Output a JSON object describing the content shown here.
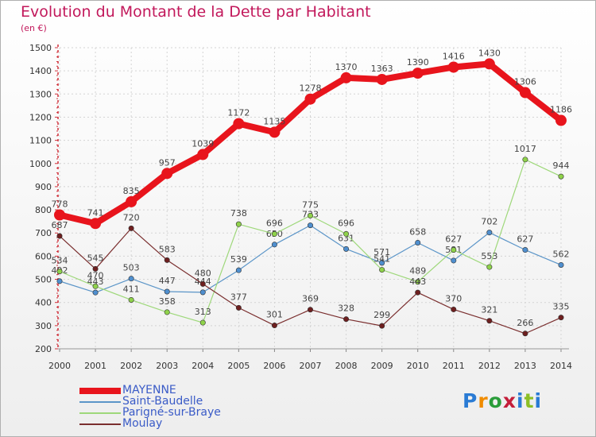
{
  "title": "Evolution du Montant de la Dette par Habitant",
  "subtitle": "(en €)",
  "logo": {
    "text": "Proxiti",
    "letter_colors": [
      "#2a7bd4",
      "#f08c00",
      "#2a9d3a",
      "#c41e3a",
      "#2a7bd4",
      "#8cbf26",
      "#2a7bd4"
    ]
  },
  "chart_data": {
    "type": "line",
    "x": [
      2000,
      2001,
      2002,
      2003,
      2004,
      2005,
      2006,
      2007,
      2008,
      2009,
      2010,
      2011,
      2012,
      2013,
      2014
    ],
    "xticks": [
      "2000",
      "2001",
      "2002",
      "2003",
      "2004",
      "2005",
      "2006",
      "2007",
      "2008",
      "2009",
      "2010",
      "2011",
      "2012",
      "2013",
      "2014"
    ],
    "ylim": [
      200,
      1500
    ],
    "yticks": [
      "200",
      "300",
      "400",
      "500",
      "600",
      "700",
      "800",
      "900",
      "1000",
      "1100",
      "1200",
      "1300",
      "1400",
      "1500"
    ],
    "grid": true,
    "legend": "bottom-left",
    "series": [
      {
        "name": "MAYENNE",
        "color": "#e8141c",
        "emphasis": true,
        "values": [
          778,
          741,
          835,
          957,
          1039,
          1172,
          1135,
          1278,
          1370,
          1363,
          1390,
          1416,
          1430,
          1306,
          1186
        ],
        "labels": [
          "778",
          "741",
          "835",
          "957",
          "1039",
          "1172",
          "1135",
          "1278",
          "1370",
          "1363",
          "1390",
          "1416",
          "1430",
          "1306",
          "1186"
        ]
      },
      {
        "name": "Saint-Baudelle",
        "color": "#5b95c8",
        "marker_fill": "#4f8fcf",
        "values": [
          492,
          443,
          503,
          447,
          444,
          539,
          650,
          733,
          631,
          571,
          658,
          581,
          702,
          627,
          562
        ],
        "labels": [
          "492",
          "443",
          "503",
          "447",
          "444",
          "539",
          "650",
          "733",
          "631",
          "571",
          "658",
          "581",
          "702",
          "627",
          "562"
        ]
      },
      {
        "name": "Parigné-sur-Braye",
        "color": "#9ed87a",
        "marker_fill": "#8fd24a",
        "values": [
          534,
          470,
          411,
          358,
          313,
          738,
          696,
          775,
          696,
          541,
          489,
          627,
          553,
          1017,
          944
        ],
        "labels": [
          "534",
          "470",
          "411",
          "358",
          "313",
          "738",
          "696",
          "775",
          "696",
          "541",
          "489",
          "627",
          "553",
          "1017",
          "944"
        ]
      },
      {
        "name": "Moulay",
        "color": "#7a2e2e",
        "marker_fill": "#6e1f1f",
        "values": [
          687,
          545,
          720,
          583,
          480,
          377,
          301,
          369,
          328,
          299,
          443,
          370,
          321,
          266,
          335
        ],
        "labels": [
          "687",
          "545",
          "720",
          "583",
          "480",
          "377",
          "301",
          "369",
          "328",
          "299",
          "443",
          "370",
          "321",
          "266",
          "335"
        ]
      }
    ]
  }
}
